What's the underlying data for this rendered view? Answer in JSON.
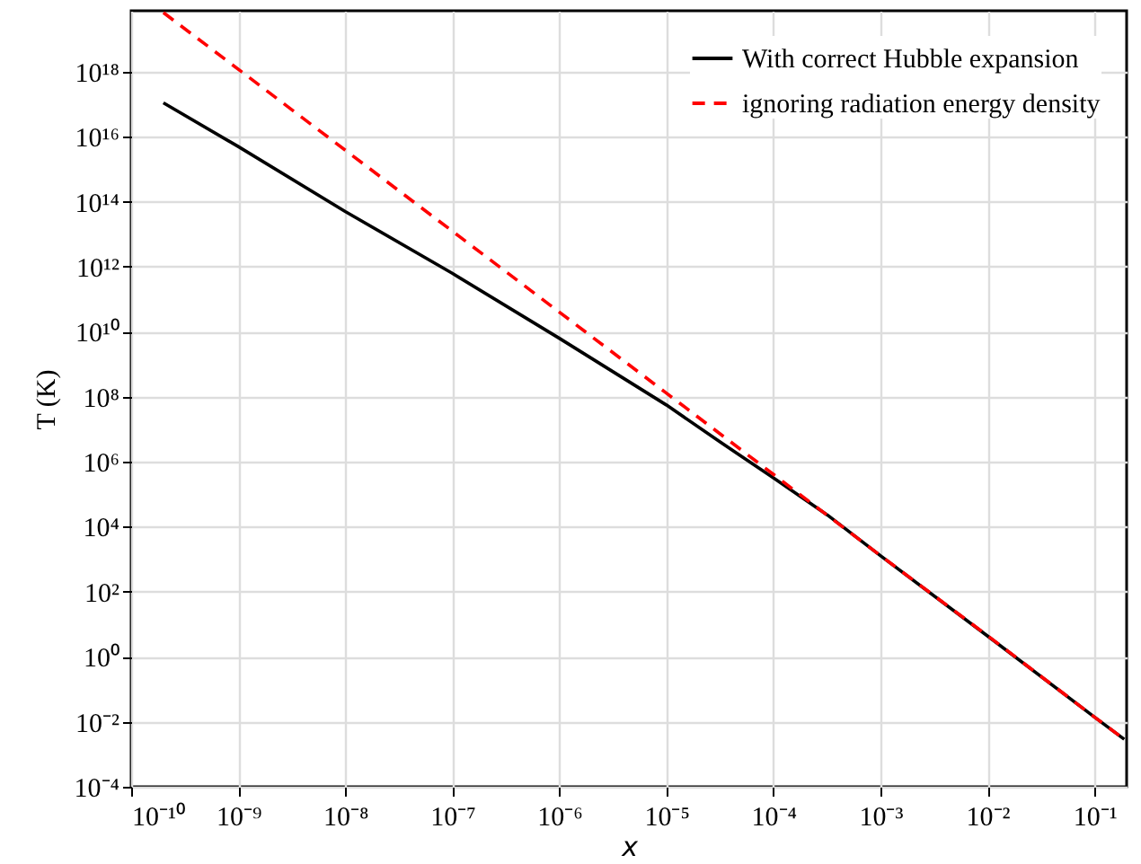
{
  "chart_data": {
    "type": "line",
    "xlabel": "x",
    "ylabel": "T (K)",
    "log": "xy",
    "grid": true,
    "legend": "top right",
    "xlim": [
      1e-10,
      0.2
    ],
    "ylim": [
      0.0001,
      7.5e+19
    ],
    "xticks": [
      {
        "value": 1e-10,
        "label": "10⁻¹⁰"
      },
      {
        "value": 1e-09,
        "label": "10⁻⁹"
      },
      {
        "value": 1e-08,
        "label": "10⁻⁸"
      },
      {
        "value": 1e-07,
        "label": "10⁻⁷"
      },
      {
        "value": 1e-06,
        "label": "10⁻⁶"
      },
      {
        "value": 1e-05,
        "label": "10⁻⁵"
      },
      {
        "value": 0.0001,
        "label": "10⁻⁴"
      },
      {
        "value": 0.001,
        "label": "10⁻³"
      },
      {
        "value": 0.01,
        "label": "10⁻²"
      },
      {
        "value": 0.1,
        "label": "10⁻¹"
      }
    ],
    "yticks": [
      {
        "value": 0.0001,
        "label": "10⁻⁴"
      },
      {
        "value": 0.01,
        "label": "10⁻²"
      },
      {
        "value": 1,
        "label": "10⁰"
      },
      {
        "value": 100,
        "label": "10²"
      },
      {
        "value": 10000.0,
        "label": "10⁴"
      },
      {
        "value": 1000000.0,
        "label": "10⁶"
      },
      {
        "value": 100000000.0,
        "label": "10⁸"
      },
      {
        "value": 10000000000.0,
        "label": "10¹⁰"
      },
      {
        "value": 1000000000000.0,
        "label": "10¹²"
      },
      {
        "value": 100000000000000.0,
        "label": "10¹⁴"
      },
      {
        "value": 1e+16,
        "label": "10¹⁶"
      },
      {
        "value": 1e+18,
        "label": "10¹⁸"
      }
    ],
    "series": [
      {
        "name": "With correct Hubble expansion",
        "color": "#000000",
        "line_style": "solid",
        "x": [
          2e-10,
          1e-09,
          1e-08,
          1e-07,
          1e-06,
          1e-05,
          3.2e-05,
          0.0001,
          0.00032,
          0.001,
          0.01,
          0.1,
          0.19
        ],
        "values": [
          1.1e+17,
          5000000000000000.0,
          50000000000000.0,
          630000000000.0,
          6300000000.0,
          56000000.0,
          4000000.0,
          320000.0,
          23000.0,
          1300,
          4.4,
          0.014,
          0.0029
        ]
      },
      {
        "name": "ignoring radiation energy density",
        "color": "#ff0000",
        "line_style": "dashed",
        "x": [
          2e-10,
          1e-05,
          0.001,
          0.01,
          0.1,
          0.19
        ],
        "values": [
          6.6e+19,
          130000000.0,
          1300,
          4.5,
          0.014,
          0.0029
        ]
      }
    ]
  }
}
